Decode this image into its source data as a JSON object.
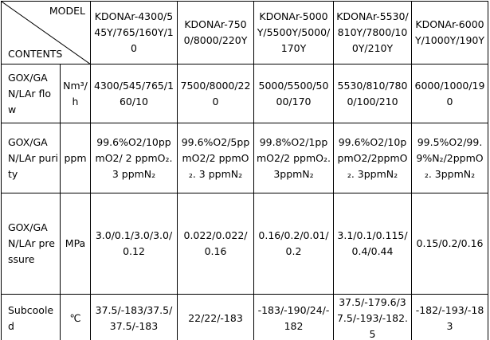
{
  "header": {
    "model": "MODEL",
    "contents": "CONTENTS",
    "columns": [
      "KDONAr-4300/545Y/765/160Y/10",
      "KDONAr-7500/8000/220Y",
      "KDONAr-5000Y/5500Y/5000/170Y",
      "KDONAr-5530/810Y/7800/100Y/210Y",
      "KDONAr-6000Y/1000Y/190Y"
    ]
  },
  "rows": [
    {
      "label": "GOX/GAN/LAr flow",
      "unit": "Nm³/h",
      "values": [
        "4300/545/765/160/10",
        "7500/8000/220",
        "5000/5500/5000/170",
        "5530/810/7800/100/210",
        "6000/1000/190"
      ]
    },
    {
      "label": "GOX/GAN/LAr purity",
      "unit": "ppm",
      "values": [
        "99.6%O2/10ppmO2/ 2 ppmO₂. 3 ppmN₂",
        "99.6%O2/5ppmO2/2 ppmO₂. 3 ppmN₂",
        "99.8%O2/1ppmO2/2 ppmO₂. 3ppmN₂",
        "99.6%O2/10ppmO2/2ppmO₂. 3ppmN₂",
        "99.5%O2/99.9%N₂/2ppmO₂. 3ppmN₂"
      ]
    },
    {
      "label": "GOX/GAN/LAr pressure",
      "unit": "MPa",
      "values": [
        "3.0/0.1/3.0/3.0/0.12",
        "0.022/0.022/0.16",
        "0.16/0.2/0.01/0.2",
        "3.1/0.1/0.115/0.4/0.44",
        "0.15/0.2/0.16"
      ]
    },
    {
      "label": "Subcooled",
      "unit": "℃",
      "values": [
        "37.5/-183/37.5/37.5/-183",
        "22/22/-183",
        "-183/-190/24/-182",
        "37.5/-179.6/37.5/-193/-182.5",
        "-182/-193/-183"
      ]
    }
  ]
}
